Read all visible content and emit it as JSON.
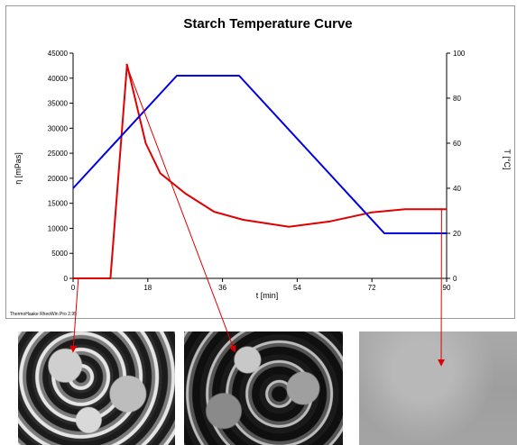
{
  "chart_data": {
    "type": "line",
    "title": "Starch Temperature Curve",
    "xlabel": "t  [min]",
    "ylabel": "η  [mPas]",
    "y2label": "T  [°C]",
    "xlim": [
      0,
      90
    ],
    "ylim": [
      0,
      45000
    ],
    "y2lim": [
      0,
      100
    ],
    "x_ticks": [
      0,
      18,
      36,
      54,
      72,
      90
    ],
    "y_ticks": [
      0,
      5000,
      10000,
      15000,
      20000,
      25000,
      30000,
      35000,
      40000,
      45000
    ],
    "y2_ticks": [
      0,
      20,
      40,
      60,
      80,
      100
    ],
    "grid": false,
    "series": [
      {
        "axis": "left",
        "color": "#e00000",
        "x": [
          0,
          9,
          13,
          17.5,
          21,
          27,
          34,
          41,
          52,
          62,
          72,
          80,
          90
        ],
        "y": [
          0,
          0,
          42700,
          27000,
          21000,
          17000,
          13300,
          11700,
          10300,
          11400,
          13200,
          13800,
          13800
        ]
      },
      {
        "axis": "right",
        "color": "#0000e6",
        "x": [
          0,
          25,
          40,
          75,
          90
        ],
        "y": [
          40,
          90,
          90,
          20,
          20
        ]
      }
    ],
    "annotations": {
      "arrow_color": "#e00000",
      "arrows": [
        {
          "from_x": 1.5,
          "from_y": 0,
          "target": "photo-1"
        },
        {
          "from_x": 13,
          "from_y": 42700,
          "target": "photo-2"
        },
        {
          "from_x": 89,
          "from_y": 13800,
          "target": "photo-3"
        }
      ]
    },
    "footer_text": "ThermoHaake RheoWin Pro 2.95"
  },
  "photos": [
    {
      "name": "starch-granules-photo",
      "tone": "bright granules"
    },
    {
      "name": "swollen-granules-photo",
      "tone": "dark swollen"
    },
    {
      "name": "gel-photo",
      "tone": "uniform grey"
    }
  ]
}
